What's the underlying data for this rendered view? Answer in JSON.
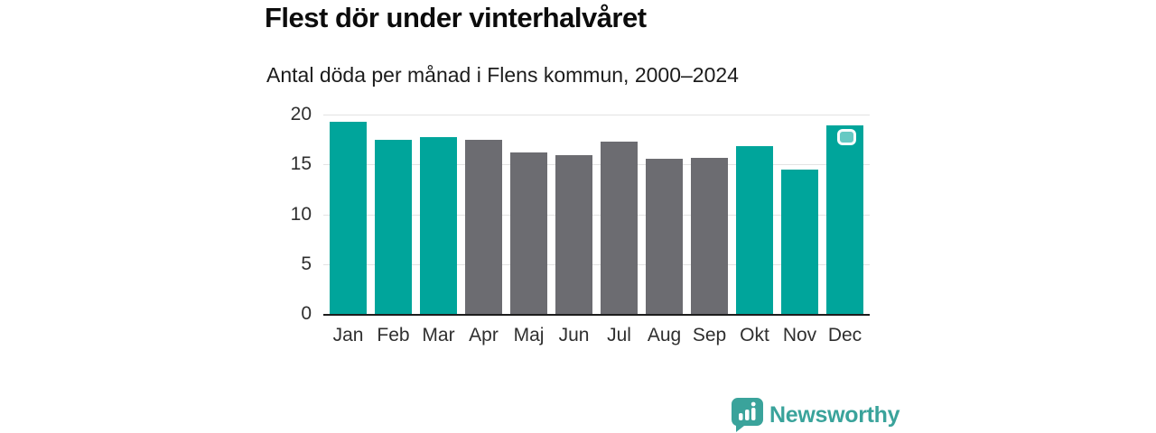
{
  "title": "Flest dör under vinterhalvåret",
  "subtitle": "Antal döda per månad i Flens kommun, 2000–2024",
  "chart_data": {
    "type": "bar",
    "categories": [
      "Jan",
      "Feb",
      "Mar",
      "Apr",
      "Maj",
      "Jun",
      "Jul",
      "Aug",
      "Sep",
      "Okt",
      "Nov",
      "Dec"
    ],
    "values": [
      19.3,
      17.5,
      17.7,
      17.5,
      16.2,
      15.9,
      17.3,
      15.6,
      15.7,
      16.8,
      14.5,
      18.9
    ],
    "bar_color_keys": [
      "winter",
      "winter",
      "winter",
      "summer",
      "summer",
      "summer",
      "summer",
      "summer",
      "summer",
      "winter",
      "winter",
      "winter"
    ],
    "colors": {
      "winter": "#00a59b",
      "summer": "#6c6c71"
    },
    "yticks": [
      0,
      5,
      10,
      15,
      20
    ],
    "ylim": [
      0,
      20
    ],
    "grid": true,
    "legend": "none",
    "xlabel": "",
    "ylabel": ""
  },
  "branding": {
    "logo_text": "Newsworthy",
    "logo_color": "#3aa39b"
  }
}
